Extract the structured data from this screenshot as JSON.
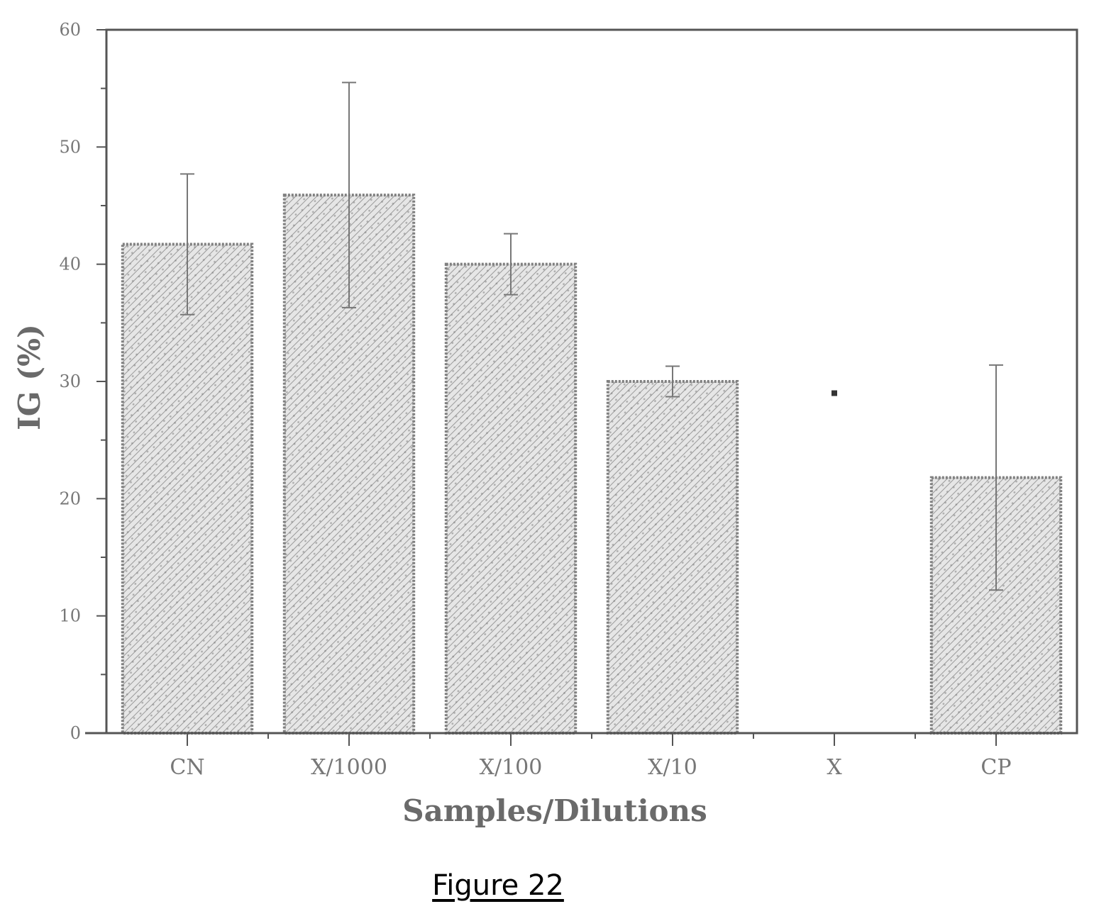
{
  "figure_caption": "Figure 22",
  "chart_data": {
    "type": "bar",
    "title": "",
    "xlabel": "Samples/Dilutions",
    "ylabel": "IG (%)",
    "ylim": [
      0,
      60
    ],
    "ytick_values": [
      0,
      10,
      20,
      30,
      40,
      50,
      60
    ],
    "ytick_labels": [
      "0",
      "10",
      "20",
      "30",
      "40",
      "50",
      "60"
    ],
    "categories": [
      "CN",
      "X/1000",
      "X/100",
      "X/10",
      "X",
      "CP"
    ],
    "values": [
      41.7,
      45.9,
      40.0,
      30.0,
      0,
      21.8
    ],
    "errors": [
      6.0,
      9.6,
      2.6,
      1.3,
      null,
      9.6
    ],
    "point_markers": [
      null,
      null,
      null,
      null,
      29.0,
      null
    ],
    "grid": false,
    "legend": "none",
    "colors": {
      "bar_fill": "#dcdcdc",
      "bar_edge": "#808080",
      "axis": "#555555"
    }
  }
}
